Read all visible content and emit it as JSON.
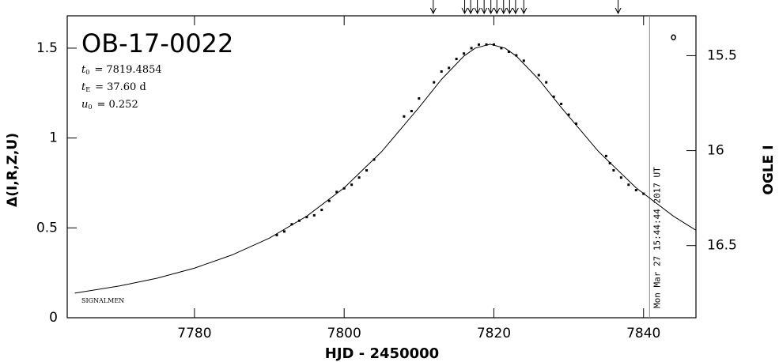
{
  "chart_data": {
    "type": "line",
    "title": "OB-17-0022",
    "params": [
      {
        "symbol": "t",
        "subscript": "0",
        "text": "= 7819.4854"
      },
      {
        "symbol": "t",
        "subscript": "E",
        "text": "= 37.60 d"
      },
      {
        "symbol": "u",
        "subscript": "0",
        "text": "= 0.252"
      }
    ],
    "credit": "SIGNALMEN",
    "timestamp": "Mon Mar 27 15:44:44 2017 UT",
    "x_label": "HJD - 2450000",
    "y_label": "Δ(I,R,Z,U)",
    "y2_label": "OGLE I",
    "xlim": [
      7763,
      7847
    ],
    "xticks": [
      7780,
      7800,
      7820,
      7840
    ],
    "ylim": [
      0,
      1.68
    ],
    "yticks": [
      0,
      0.5,
      1,
      1.5
    ],
    "y2lim": [
      16.88,
      15.29
    ],
    "y2ticks": [
      15.5,
      16,
      16.5
    ],
    "now_x": 7840.8,
    "arrows_x": [
      7811.9,
      7816.1,
      7816.9,
      7817.8,
      7818.7,
      7819.6,
      7820.4,
      7821.3,
      7822.1,
      7822.9,
      7824.0,
      7836.6
    ],
    "model": {
      "color": "#000000",
      "x": [
        7764,
        7770,
        7775,
        7780,
        7785,
        7790,
        7795,
        7800,
        7805,
        7810,
        7813,
        7816,
        7817.5,
        7819.5,
        7821.5,
        7823,
        7826,
        7829,
        7834,
        7839,
        7844,
        7847
      ],
      "values": [
        0.137,
        0.177,
        0.22,
        0.276,
        0.349,
        0.443,
        0.565,
        0.723,
        0.924,
        1.17,
        1.326,
        1.456,
        1.5,
        1.522,
        1.5,
        1.456,
        1.326,
        1.17,
        0.924,
        0.723,
        0.565,
        0.487
      ]
    },
    "points": {
      "color": "#000000",
      "x": [
        7791,
        7792,
        7793,
        7794,
        7795,
        7796,
        7797,
        7798,
        7799,
        7800,
        7801,
        7802,
        7803,
        7804,
        7808,
        7809,
        7810,
        7812,
        7813,
        7814,
        7815,
        7816,
        7817,
        7818,
        7819,
        7820,
        7821,
        7822,
        7823,
        7824,
        7826,
        7827,
        7828,
        7829,
        7830,
        7831,
        7835,
        7835.5,
        7836,
        7837,
        7838,
        7839,
        7840
      ],
      "values": [
        0.46,
        0.48,
        0.52,
        0.54,
        0.56,
        0.57,
        0.6,
        0.65,
        0.7,
        0.72,
        0.74,
        0.78,
        0.82,
        0.88,
        1.12,
        1.15,
        1.22,
        1.31,
        1.37,
        1.39,
        1.44,
        1.47,
        1.5,
        1.52,
        1.52,
        1.52,
        1.5,
        1.48,
        1.46,
        1.43,
        1.35,
        1.31,
        1.23,
        1.19,
        1.13,
        1.08,
        0.9,
        0.86,
        0.82,
        0.78,
        0.74,
        0.71,
        0.69
      ]
    },
    "open_points": {
      "color": "#000000",
      "x": [
        7844
      ],
      "values": [
        1.56
      ]
    }
  }
}
